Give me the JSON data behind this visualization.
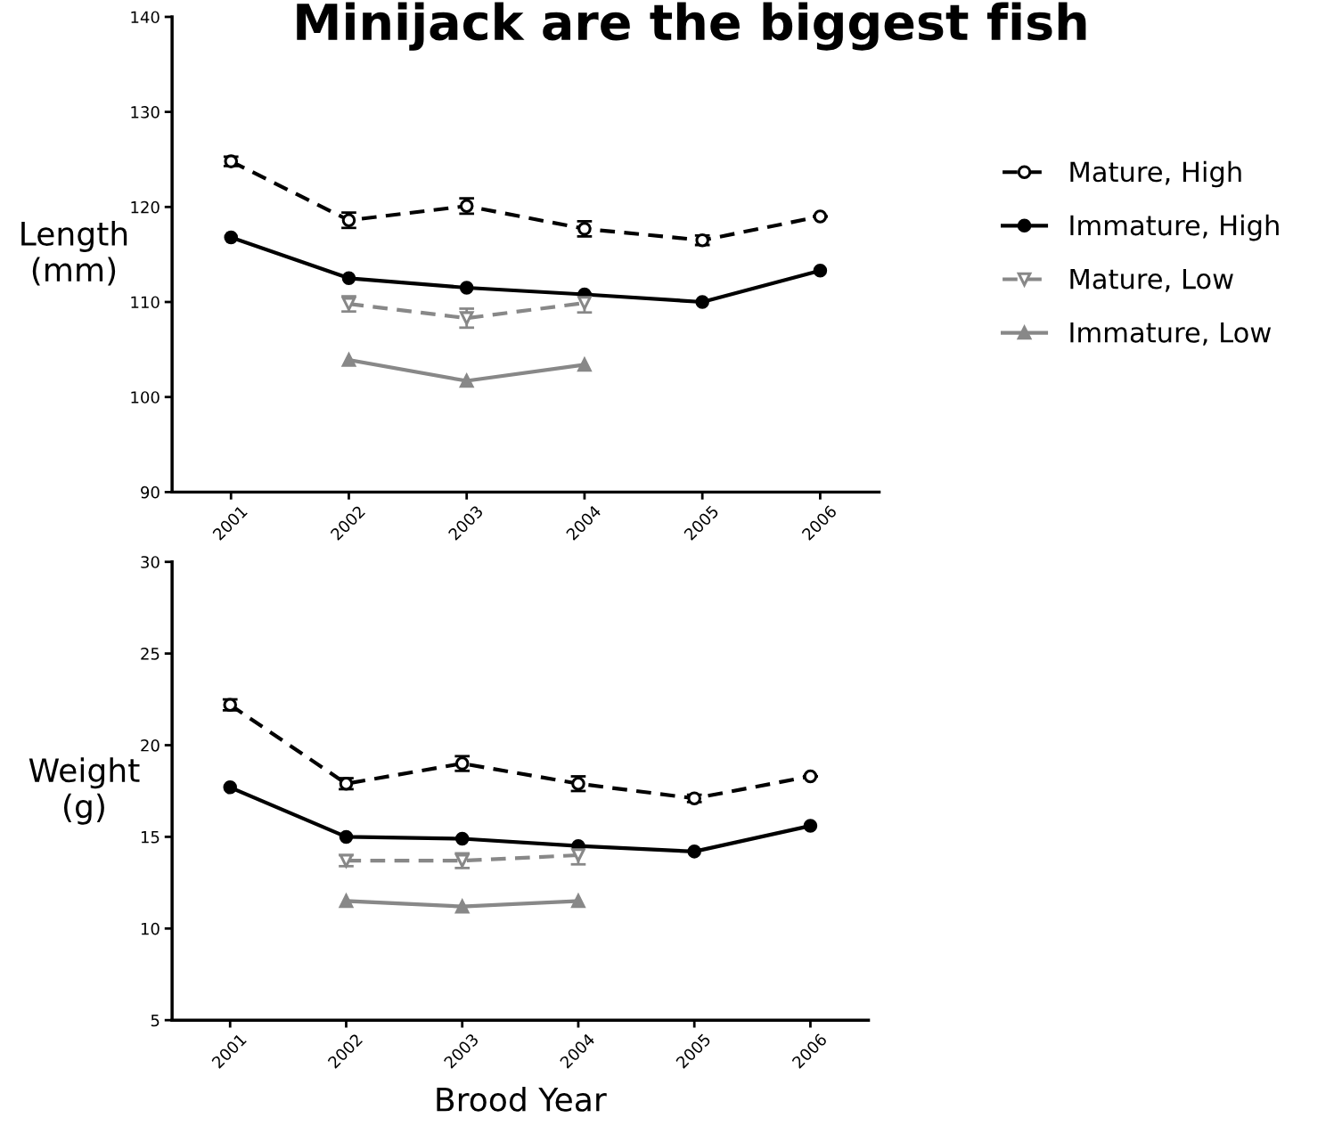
{
  "chart_data": [
    {
      "type": "line",
      "title": "Minijack are the biggest fish",
      "ylabel": "Length\n(mm)",
      "categories": [
        "2001",
        "2002",
        "2003",
        "2004",
        "2005",
        "2006"
      ],
      "ylim": [
        90,
        140
      ],
      "yticks": [
        90,
        100,
        110,
        120,
        130,
        140
      ],
      "grid": false,
      "legend": "right",
      "series": [
        {
          "name": "Mature, High",
          "color": "#000000",
          "marker": "circle",
          "line_style": "dashed",
          "values": [
            124.8,
            118.6,
            120.1,
            117.7,
            116.5,
            119.0
          ],
          "errors": [
            0.5,
            0.8,
            0.8,
            0.8,
            0.5,
            null
          ]
        },
        {
          "name": "Immature, High",
          "color": "#000000",
          "marker": "circle",
          "line_style": "solid",
          "values": [
            116.8,
            112.5,
            111.5,
            110.8,
            110.0,
            113.3
          ]
        },
        {
          "name": "Mature, Low",
          "color": "#888888",
          "marker": "triangle_down",
          "line_style": "dashed",
          "values": [
            null,
            109.8,
            108.3,
            109.9,
            null,
            null
          ],
          "errors": [
            null,
            0.8,
            1.0,
            1.0,
            null,
            null
          ]
        },
        {
          "name": "Immature, Low",
          "color": "#888888",
          "marker": "triangle",
          "line_style": "solid",
          "values": [
            null,
            103.9,
            101.7,
            103.4,
            null,
            null
          ]
        }
      ]
    },
    {
      "type": "line",
      "ylabel": "Weight\n(g)",
      "xlabel": "Brood Year",
      "categories": [
        "2001",
        "2002",
        "2003",
        "2004",
        "2005",
        "2006"
      ],
      "ylim": [
        5,
        30
      ],
      "yticks": [
        5,
        10,
        15,
        20,
        25,
        30
      ],
      "grid": false,
      "series": [
        {
          "color": "#000000",
          "marker": "circle",
          "line_style": "dashed",
          "values": [
            22.2,
            17.9,
            19.0,
            17.9,
            17.1,
            18.3
          ],
          "errors": [
            0.3,
            0.3,
            0.4,
            0.4,
            0.2,
            null
          ]
        },
        {
          "color": "#000000",
          "marker": "circle",
          "line_style": "solid",
          "values": [
            17.7,
            15.0,
            14.9,
            14.5,
            14.2,
            15.6
          ]
        },
        {
          "color": "#888888",
          "marker": "triangle_down",
          "line_style": "dashed",
          "values": [
            null,
            13.7,
            13.7,
            14.0,
            null,
            null
          ],
          "errors": [
            null,
            0.3,
            0.4,
            0.5,
            null,
            null
          ]
        },
        {
          "color": "#888888",
          "marker": "triangle",
          "line_style": "solid",
          "values": [
            null,
            11.5,
            11.2,
            11.5,
            null,
            null
          ]
        }
      ]
    }
  ]
}
